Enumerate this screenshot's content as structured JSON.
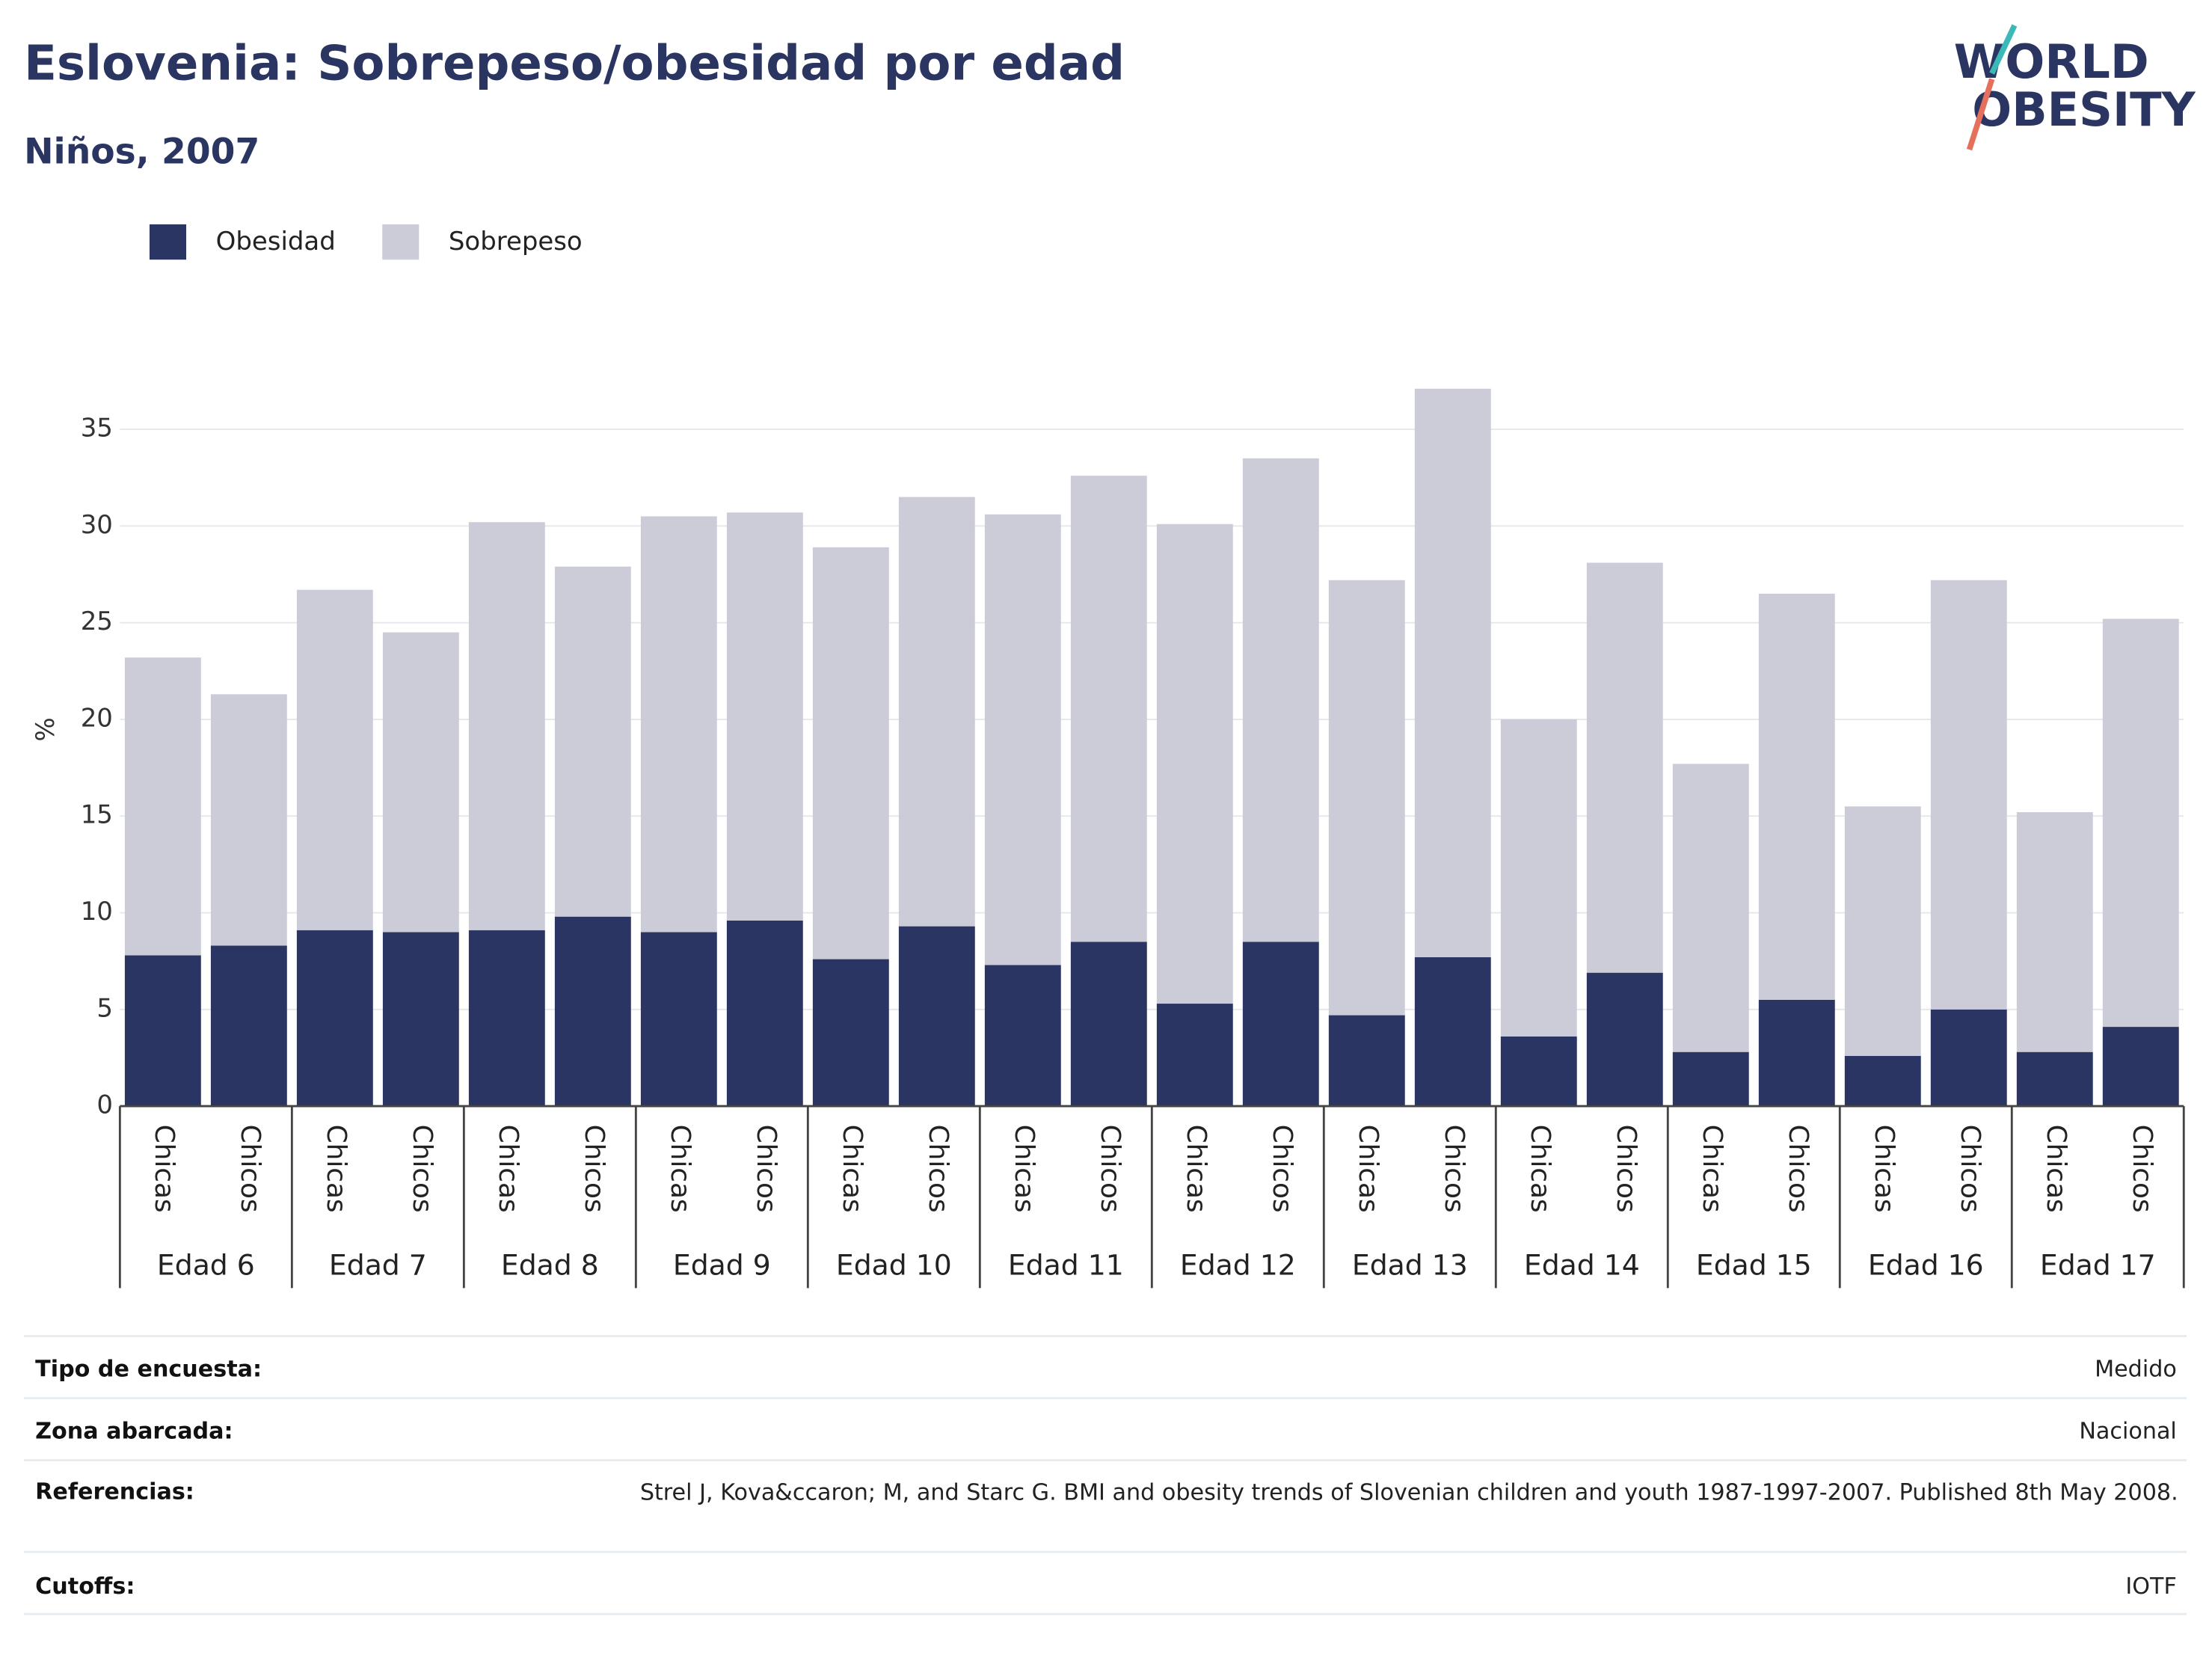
{
  "chart_data": {
    "type": "stacked_bar",
    "title": "Eslovenia: Sobrepeso/obesidad por edad",
    "subtitle": "Niños, 2007",
    "y_label": "%",
    "categories": [
      "Chicas",
      "Chicos",
      "Chicas",
      "Chicos",
      "Chicas",
      "Chicos",
      "Chicas",
      "Chicos",
      "Chicas",
      "Chicos",
      "Chicas",
      "Chicos",
      "Chicas",
      "Chicos",
      "Chicas",
      "Chicos",
      "Chicas",
      "Chicos",
      "Chicas",
      "Chicos",
      "Chicas",
      "Chicos",
      "Chicas",
      "Chicos"
    ],
    "groups": [
      "Edad 6",
      "Edad 7",
      "Edad 8",
      "Edad 9",
      "Edad 10",
      "Edad 11",
      "Edad 12",
      "Edad 13",
      "Edad 14",
      "Edad 15",
      "Edad 16",
      "Edad 17"
    ],
    "series": [
      {
        "name": "Obesidad",
        "color": "#2a3563",
        "values": [
          7.8,
          8.3,
          9.1,
          9.0,
          9.1,
          9.8,
          9.0,
          9.6,
          7.6,
          9.3,
          7.3,
          8.5,
          5.3,
          8.5,
          4.7,
          7.7,
          3.6,
          6.9,
          2.8,
          5.5,
          2.6,
          5.0,
          2.8,
          4.1
        ]
      },
      {
        "name": "Sobrepeso",
        "color": "#cbccd8",
        "values": [
          15.4,
          13.0,
          17.6,
          15.5,
          21.1,
          18.1,
          21.5,
          21.1,
          21.3,
          22.2,
          23.3,
          24.1,
          24.8,
          25.0,
          22.5,
          29.4,
          16.4,
          21.2,
          14.9,
          21.0,
          12.9,
          22.2,
          12.4,
          21.1
        ]
      }
    ],
    "ylim": [
      0,
      37.5
    ],
    "yticks": [
      0,
      5,
      10,
      15,
      20,
      25,
      30,
      35
    ],
    "grid": true,
    "legend": "top-left"
  },
  "logo": {
    "line1": "WORLD",
    "line2": "OBESITY"
  },
  "table": {
    "rows": [
      [
        "Tipo de encuesta:",
        "Medido"
      ],
      [
        "Zona abarcada:",
        "Nacional"
      ],
      [
        "Referencias:",
        "Strel J, Kova&ccaron; M, and Starc G. BMI and obesity trends of Slovenian children and youth 1987-1997-2007. Published 8th May 2008."
      ],
      [
        "Cutoffs:",
        "IOTF"
      ]
    ]
  }
}
